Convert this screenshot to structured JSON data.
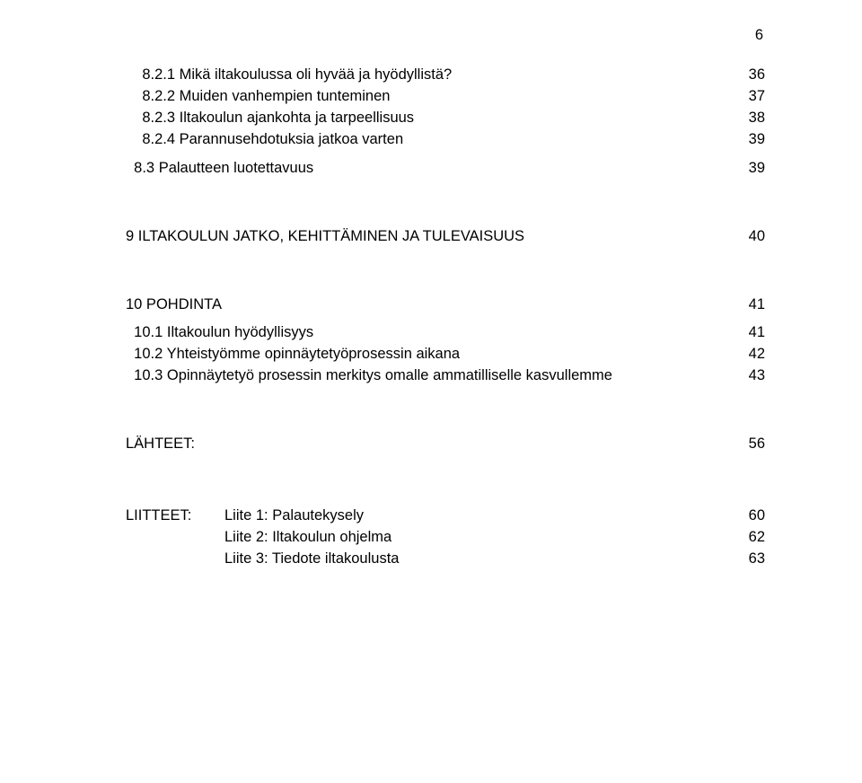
{
  "page_number_top": "6",
  "sections": {
    "s1": {
      "i1": {
        "label": "    8.2.1 Mikä iltakoulussa oli hyvää ja hyödyllistä?",
        "page": "36"
      },
      "i2": {
        "label": "    8.2.2 Muiden vanhempien tunteminen",
        "page": "37"
      },
      "i3": {
        "label": "    8.2.3 Iltakoulun ajankohta ja tarpeellisuus",
        "page": "38"
      },
      "i4": {
        "label": "    8.2.4 Parannusehdotuksia jatkoa varten",
        "page": "39"
      },
      "i5": {
        "label": "  8.3 Palautteen luotettavuus",
        "page": "39"
      }
    },
    "s2": {
      "i1": {
        "label": "9 ILTAKOULUN JATKO, KEHITTÄMINEN JA TULEVAISUUS",
        "page": "40"
      }
    },
    "s3": {
      "i1": {
        "label": "10 POHDINTA",
        "page": "41"
      },
      "i2": {
        "label": "  10.1 Iltakoulun hyödyllisyys",
        "page": "41"
      },
      "i3": {
        "label": "  10.2 Yhteistyömme opinnäytetyöprosessin aikana",
        "page": "42"
      },
      "i4": {
        "label": "  10.3 Opinnäytetyö prosessin merkitys omalle ammatilliselle kasvullemme",
        "page": "43"
      }
    },
    "s4": {
      "i1": {
        "label": "LÄHTEET:",
        "page": "56"
      }
    },
    "attachments": {
      "lead": "LIITTEET:",
      "a1": {
        "label": "Liite 1: Palautekysely",
        "page": "60"
      },
      "a2": {
        "label": "Liite 2: Iltakoulun ohjelma",
        "page": "62"
      },
      "a3": {
        "label": "Liite 3: Tiedote iltakoulusta",
        "page": "63"
      }
    }
  }
}
